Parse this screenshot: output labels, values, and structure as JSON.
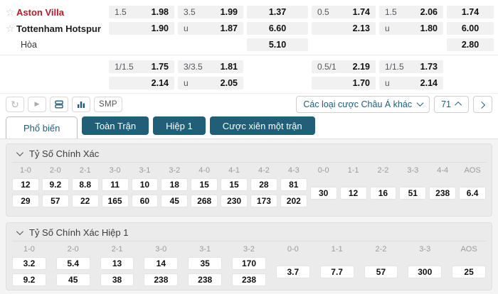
{
  "colors": {
    "accent": "#215e78",
    "home_red": "#b01c2a",
    "cell_bg": "#f1f1f2",
    "card_bg": "#ebebec"
  },
  "match": {
    "teams": [
      {
        "star": true,
        "name": "Aston Villa",
        "highlight": true
      },
      {
        "star": true,
        "name": "Tottenham Hotspur",
        "highlight": false
      },
      {
        "star": false,
        "name": "Hòa",
        "highlight": false
      }
    ],
    "top": [
      [
        {
          "h": "1.5",
          "o": "1.98"
        },
        {
          "h": "3.5",
          "o": "1.99"
        },
        {
          "single": true,
          "o": "1.37"
        },
        {
          "h": "0.5",
          "o": "1.74"
        },
        {
          "h": "1.5",
          "o": "2.06"
        },
        {
          "single": true,
          "o": "1.74"
        }
      ],
      [
        {
          "h": "",
          "o": "1.90"
        },
        {
          "h": "u",
          "o": "1.87"
        },
        {
          "single": true,
          "o": "6.60"
        },
        {
          "h": "",
          "o": "2.13"
        },
        {
          "h": "u",
          "o": "1.80"
        },
        {
          "single": true,
          "o": "6.00"
        }
      ],
      [
        null,
        null,
        {
          "single": true,
          "o": "5.10"
        },
        null,
        null,
        {
          "single": true,
          "o": "2.80"
        }
      ]
    ],
    "bottom": [
      [
        {
          "h": "1/1.5",
          "o": "1.75"
        },
        {
          "h": "3/3.5",
          "o": "1.81"
        },
        null,
        {
          "h": "0.5/1",
          "o": "2.19"
        },
        {
          "h": "1/1.5",
          "o": "1.73"
        },
        null
      ],
      [
        {
          "h": "",
          "o": "2.14"
        },
        {
          "h": "u",
          "o": "2.05"
        },
        null,
        {
          "h": "",
          "o": "1.70"
        },
        {
          "h": "u",
          "o": "2.14"
        },
        null
      ]
    ]
  },
  "toolbar": {
    "icons": [
      {
        "name": "refresh-icon"
      },
      {
        "name": "play-icon"
      },
      {
        "name": "layers-icon"
      },
      {
        "name": "bar-chart-icon"
      }
    ],
    "smp_label": "SMP",
    "dropdown_label": "Các loại cược Châu Á khác",
    "market_count": "71"
  },
  "tabs": [
    {
      "label": "Phổ biến",
      "active": true
    },
    {
      "label": "Toàn Trận",
      "active": false
    },
    {
      "label": "Hiệp 1",
      "active": false
    },
    {
      "label": "Cược xiên một trận",
      "active": false
    }
  ],
  "sections": [
    {
      "title": "Tỷ Số Chính Xác",
      "gap": 4,
      "columns": [
        {
          "label": "1-0",
          "values": [
            "12",
            "29"
          ]
        },
        {
          "label": "2-0",
          "values": [
            "9.2",
            "57"
          ]
        },
        {
          "label": "2-1",
          "values": [
            "8.8",
            "22"
          ]
        },
        {
          "label": "3-0",
          "values": [
            "11",
            "165"
          ]
        },
        {
          "label": "3-1",
          "values": [
            "10",
            "60"
          ]
        },
        {
          "label": "3-2",
          "values": [
            "18",
            "45"
          ]
        },
        {
          "label": "4-0",
          "values": [
            "15",
            "268"
          ]
        },
        {
          "label": "4-1",
          "values": [
            "15",
            "230"
          ]
        },
        {
          "label": "4-2",
          "values": [
            "28",
            "173"
          ]
        },
        {
          "label": "4-3",
          "values": [
            "81",
            "202"
          ]
        },
        {
          "label": "0-0",
          "values": [
            "30"
          ]
        },
        {
          "label": "1-1",
          "values": [
            "12"
          ]
        },
        {
          "label": "2-2",
          "values": [
            "16"
          ]
        },
        {
          "label": "3-3",
          "values": [
            "51"
          ]
        },
        {
          "label": "4-4",
          "values": [
            "238"
          ]
        },
        {
          "label": "AOS",
          "values": [
            "6.4"
          ]
        }
      ]
    },
    {
      "title": "Tỷ Số Chính Xác Hiệp 1",
      "gap": 14,
      "columns": [
        {
          "label": "1-0",
          "values": [
            "3.2",
            "9.2"
          ]
        },
        {
          "label": "2-0",
          "values": [
            "5.4",
            "45"
          ]
        },
        {
          "label": "2-1",
          "values": [
            "13",
            "38"
          ]
        },
        {
          "label": "3-0",
          "values": [
            "14",
            "238"
          ]
        },
        {
          "label": "3-1",
          "values": [
            "35",
            "238"
          ]
        },
        {
          "label": "3-2",
          "values": [
            "170",
            "238"
          ]
        },
        {
          "label": "0-0",
          "values": [
            "3.7"
          ]
        },
        {
          "label": "1-1",
          "values": [
            "7.7"
          ]
        },
        {
          "label": "2-2",
          "values": [
            "57"
          ]
        },
        {
          "label": "3-3",
          "values": [
            "300"
          ]
        },
        {
          "label": "AOS",
          "values": [
            "25"
          ]
        }
      ]
    }
  ]
}
